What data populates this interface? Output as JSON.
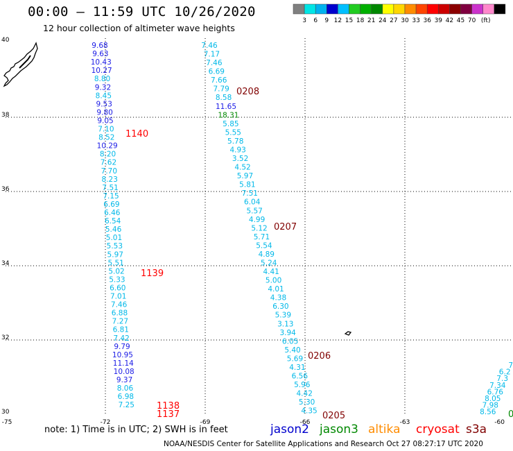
{
  "header": {
    "title": "00:00 – 11:59 UTC 10/26/2020",
    "subtitle": "12 hour collection of altimeter wave heights"
  },
  "legend": {
    "colors": [
      "#808080",
      "#00e5e5",
      "#00b2ee",
      "#0000cd",
      "#00bfff",
      "#22cc22",
      "#00b000",
      "#008800",
      "#ffff00",
      "#ffd700",
      "#ff8c00",
      "#ff4500",
      "#ff0000",
      "#cc0000",
      "#8b0000",
      "#800040",
      "#cc33cc",
      "#ff88cc",
      "#000000"
    ],
    "labels": [
      "3",
      "6",
      "9",
      "12",
      "15",
      "18",
      "21",
      "24",
      "27",
      "30",
      "33",
      "36",
      "39",
      "42",
      "45",
      "70",
      "(ft)"
    ]
  },
  "axes": {
    "lon_labels": [
      "-75",
      "-72",
      "-69",
      "-66",
      "-63",
      "-60"
    ],
    "lon_values": [
      -75,
      -72,
      -69,
      -66,
      -63,
      -60
    ],
    "lat_labels": [
      "40",
      "38",
      "36",
      "34",
      "32",
      "30"
    ],
    "lat_values": [
      40,
      38,
      36,
      34,
      32,
      30
    ]
  },
  "colors": {
    "jason2": "#0000cd",
    "jason3": "#008800",
    "altika": "#ff8c00",
    "cryosat": "#ff0000",
    "s3a": "#800000",
    "cyan": "#00b8e8",
    "blue": "#1a1ae6",
    "green": "#008800"
  },
  "tracks": [
    {
      "id": "track-left",
      "values": [
        {
          "v": "9.68",
          "c": "blue"
        },
        {
          "v": "9.63",
          "c": "blue"
        },
        {
          "v": "10.43",
          "c": "blue"
        },
        {
          "v": "10.27",
          "c": "blue"
        },
        {
          "v": "8.80",
          "c": "cyan"
        },
        {
          "v": "9.32",
          "c": "blue"
        },
        {
          "v": "8.45",
          "c": "cyan"
        },
        {
          "v": "9.53",
          "c": "blue"
        },
        {
          "v": "9.80",
          "c": "blue"
        },
        {
          "v": "9.05",
          "c": "blue"
        },
        {
          "v": "7.10",
          "c": "cyan"
        },
        {
          "v": "8.52",
          "c": "cyan"
        },
        {
          "v": "10.29",
          "c": "blue"
        },
        {
          "v": "8.20",
          "c": "cyan"
        },
        {
          "v": "7.62",
          "c": "cyan"
        },
        {
          "v": "7.70",
          "c": "cyan"
        },
        {
          "v": "8.23",
          "c": "cyan"
        },
        {
          "v": "7.51",
          "c": "cyan"
        },
        {
          "v": "7.15",
          "c": "cyan"
        },
        {
          "v": "6.69",
          "c": "cyan"
        },
        {
          "v": "6.46",
          "c": "cyan"
        },
        {
          "v": "6.54",
          "c": "cyan"
        },
        {
          "v": "5.46",
          "c": "cyan"
        },
        {
          "v": "5.01",
          "c": "cyan"
        },
        {
          "v": "5.53",
          "c": "cyan"
        },
        {
          "v": "5.97",
          "c": "cyan"
        },
        {
          "v": "5.51",
          "c": "cyan"
        },
        {
          "v": "5.02",
          "c": "cyan"
        },
        {
          "v": "5.33",
          "c": "cyan"
        },
        {
          "v": "6.60",
          "c": "cyan"
        },
        {
          "v": "7.01",
          "c": "cyan"
        },
        {
          "v": "7.46",
          "c": "cyan"
        },
        {
          "v": "6.88",
          "c": "cyan"
        },
        {
          "v": "7.27",
          "c": "cyan"
        },
        {
          "v": "6.81",
          "c": "cyan"
        },
        {
          "v": "7.42",
          "c": "cyan"
        },
        {
          "v": "9.79",
          "c": "blue"
        },
        {
          "v": "10.95",
          "c": "blue"
        },
        {
          "v": "11.14",
          "c": "blue"
        },
        {
          "v": "10.08",
          "c": "blue"
        },
        {
          "v": "9.37",
          "c": "blue"
        },
        {
          "v": "8.06",
          "c": "cyan"
        },
        {
          "v": "6.98",
          "c": "cyan"
        },
        {
          "v": "7.25",
          "c": "cyan"
        }
      ]
    },
    {
      "id": "track-middle",
      "values": [
        {
          "v": "7.46",
          "c": "cyan"
        },
        {
          "v": "7.17",
          "c": "cyan"
        },
        {
          "v": "7.46",
          "c": "cyan"
        },
        {
          "v": "6.69",
          "c": "cyan"
        },
        {
          "v": "7.66",
          "c": "cyan"
        },
        {
          "v": "7.79",
          "c": "cyan"
        },
        {
          "v": "8.58",
          "c": "cyan"
        },
        {
          "v": "11.65",
          "c": "blue"
        },
        {
          "v": "18.31",
          "c": "green"
        },
        {
          "v": "5.85",
          "c": "cyan"
        },
        {
          "v": "5.55",
          "c": "cyan"
        },
        {
          "v": "5.78",
          "c": "cyan"
        },
        {
          "v": "4.93",
          "c": "cyan"
        },
        {
          "v": "3.52",
          "c": "cyan"
        },
        {
          "v": "4.52",
          "c": "cyan"
        },
        {
          "v": "5.97",
          "c": "cyan"
        },
        {
          "v": "5.81",
          "c": "cyan"
        },
        {
          "v": "7.51",
          "c": "cyan"
        },
        {
          "v": "6.04",
          "c": "cyan"
        },
        {
          "v": "5.57",
          "c": "cyan"
        },
        {
          "v": "4.99",
          "c": "cyan"
        },
        {
          "v": "5.12",
          "c": "cyan"
        },
        {
          "v": "5.71",
          "c": "cyan"
        },
        {
          "v": "5.54",
          "c": "cyan"
        },
        {
          "v": "4.89",
          "c": "cyan"
        },
        {
          "v": "5.24",
          "c": "cyan"
        },
        {
          "v": "4.41",
          "c": "cyan"
        },
        {
          "v": "5.00",
          "c": "cyan"
        },
        {
          "v": "4.01",
          "c": "cyan"
        },
        {
          "v": "4.38",
          "c": "cyan"
        },
        {
          "v": "6.30",
          "c": "cyan"
        },
        {
          "v": "5.39",
          "c": "cyan"
        },
        {
          "v": "3.13",
          "c": "cyan"
        },
        {
          "v": "3.94",
          "c": "cyan"
        },
        {
          "v": "6.05",
          "c": "cyan"
        },
        {
          "v": "5.40",
          "c": "cyan"
        },
        {
          "v": "5.69",
          "c": "cyan"
        },
        {
          "v": "4.31",
          "c": "cyan"
        },
        {
          "v": "6.56",
          "c": "cyan"
        },
        {
          "v": "5.96",
          "c": "cyan"
        },
        {
          "v": "4.42",
          "c": "cyan"
        },
        {
          "v": "5.30",
          "c": "cyan"
        },
        {
          "v": "4.35",
          "c": "cyan"
        }
      ]
    },
    {
      "id": "track-right",
      "values": [
        {
          "v": "7",
          "c": "cyan"
        },
        {
          "v": "6.2",
          "c": "cyan"
        },
        {
          "v": "7.3",
          "c": "cyan"
        },
        {
          "v": "7.34",
          "c": "cyan"
        },
        {
          "v": "6.76",
          "c": "cyan"
        },
        {
          "v": "8.05",
          "c": "cyan"
        },
        {
          "v": "7.98",
          "c": "cyan"
        },
        {
          "v": "8.56",
          "c": "cyan"
        }
      ]
    }
  ],
  "time_labels": [
    {
      "text": "1140",
      "c": "#ff0000"
    },
    {
      "text": "1139",
      "c": "#ff0000"
    },
    {
      "text": "1138",
      "c": "#ff0000"
    },
    {
      "text": "1137",
      "c": "#ff0000"
    },
    {
      "text": "0208",
      "c": "#800000"
    },
    {
      "text": "0207",
      "c": "#800000"
    },
    {
      "text": "0206",
      "c": "#800000"
    },
    {
      "text": "0205",
      "c": "#800000"
    },
    {
      "text": "0",
      "c": "#008800"
    }
  ],
  "footer": {
    "note": "note:  1) Time is in UTC;  2) SWH is in feet",
    "satellites": [
      {
        "label": "jason2",
        "color": "#0000cd"
      },
      {
        "label": "jason3",
        "color": "#008800"
      },
      {
        "label": "altika",
        "color": "#ff8c00"
      },
      {
        "label": "cryosat",
        "color": "#ff0000"
      },
      {
        "label": "s3a",
        "color": "#800000"
      }
    ],
    "credit": "NOAA/NESDIS Center for Satellite Applications and Research     Oct 27 08:27:17 UTC 2020"
  }
}
